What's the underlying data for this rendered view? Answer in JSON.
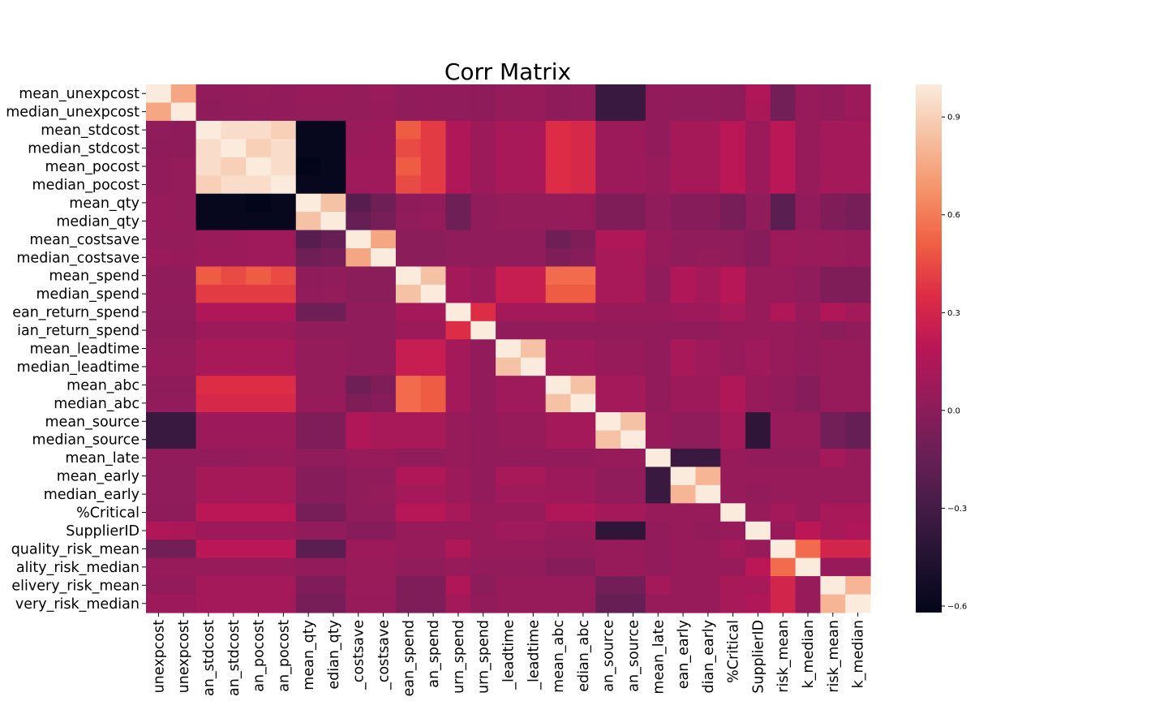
{
  "chart_data": {
    "type": "heatmap",
    "title": "Corr Matrix",
    "vmin": -0.62,
    "vmax": 1.0,
    "colorbar_ticks": [
      0.9,
      0.6,
      0.3,
      0.0,
      -0.3,
      -0.6
    ],
    "colorbar_tick_labels": [
      "0.9",
      "0.6",
      "0.3",
      "0.0",
      "−0.3",
      "−0.6"
    ],
    "y_labels": [
      "mean_unexpcost",
      "median_unexpcost",
      "mean_stdcost",
      "median_stdcost",
      "mean_pocost",
      "median_pocost",
      "mean_qty",
      "median_qty",
      "mean_costsave",
      "median_costsave",
      "mean_spend",
      "median_spend",
      "ean_return_spend",
      "ian_return_spend",
      "mean_leadtime",
      "median_leadtime",
      "mean_abc",
      "median_abc",
      "mean_source",
      "median_source",
      "mean_late",
      "mean_early",
      "median_early",
      "%Critical",
      "SupplierID",
      "quality_risk_mean",
      "ality_risk_median",
      "elivery_risk_mean",
      "very_risk_median"
    ],
    "x_labels": [
      "unexpcost",
      "unexpcost",
      "an_stdcost",
      "an_stdcost",
      "an_pocost",
      "an_pocost",
      "mean_qty",
      "edian_qty",
      "_costsave",
      "_costsave",
      "ean_spend",
      "an_spend",
      "urn_spend",
      "urn_spend",
      "_leadtime",
      "_leadtime",
      "mean_abc",
      "edian_abc",
      "an_source",
      "an_source",
      "mean_late",
      "ean_early",
      "dian_early",
      "%Critical",
      "SupplierID",
      "risk_mean",
      "k_median",
      "risk_mean",
      "k_median"
    ],
    "values": [
      [
        1.0,
        0.75,
        0.02,
        0.03,
        0.04,
        0.03,
        0.05,
        0.05,
        0.04,
        0.06,
        0.02,
        0.03,
        0.02,
        0.01,
        0.04,
        0.05,
        0.01,
        0.02,
        -0.35,
        -0.35,
        0.03,
        0.02,
        0.02,
        0.01,
        0.15,
        -0.1,
        0.05,
        0.03,
        0.07
      ],
      [
        0.75,
        1.0,
        0.01,
        0.02,
        0.03,
        0.03,
        0.04,
        0.04,
        0.04,
        0.05,
        0.02,
        0.03,
        0.02,
        0.01,
        0.04,
        0.05,
        0.01,
        0.02,
        -0.35,
        -0.35,
        0.03,
        0.02,
        0.02,
        0.01,
        0.13,
        -0.1,
        0.05,
        0.03,
        0.07
      ],
      [
        0.02,
        0.01,
        1.0,
        0.95,
        0.95,
        0.9,
        -0.6,
        -0.6,
        0.06,
        0.07,
        0.5,
        0.4,
        0.15,
        0.07,
        0.12,
        0.12,
        0.35,
        0.32,
        0.07,
        0.07,
        0.03,
        0.11,
        0.11,
        0.2,
        0.07,
        0.2,
        0.05,
        0.1,
        0.1
      ],
      [
        0.01,
        0.01,
        0.95,
        1.0,
        0.9,
        0.95,
        -0.6,
        -0.6,
        0.06,
        0.07,
        0.45,
        0.4,
        0.15,
        0.07,
        0.12,
        0.12,
        0.35,
        0.32,
        0.07,
        0.07,
        0.03,
        0.11,
        0.11,
        0.2,
        0.07,
        0.2,
        0.05,
        0.1,
        0.1
      ],
      [
        0.03,
        0.04,
        0.95,
        0.9,
        1.0,
        0.95,
        -0.62,
        -0.6,
        0.08,
        0.08,
        0.5,
        0.4,
        0.15,
        0.07,
        0.12,
        0.12,
        0.35,
        0.32,
        0.07,
        0.07,
        0.05,
        0.11,
        0.11,
        0.2,
        0.07,
        0.2,
        0.05,
        0.1,
        0.1
      ],
      [
        0.03,
        0.04,
        0.9,
        0.95,
        0.95,
        1.0,
        -0.6,
        -0.6,
        0.08,
        0.08,
        0.45,
        0.4,
        0.15,
        0.07,
        0.12,
        0.12,
        0.35,
        0.32,
        0.07,
        0.07,
        0.05,
        0.11,
        0.11,
        0.2,
        0.07,
        0.2,
        0.05,
        0.1,
        0.1
      ],
      [
        0.05,
        0.04,
        -0.6,
        -0.6,
        -0.62,
        -0.6,
        1.0,
        0.85,
        -0.22,
        -0.12,
        0.01,
        0.03,
        -0.12,
        0.02,
        0.04,
        0.04,
        0.04,
        0.05,
        -0.05,
        -0.05,
        0.02,
        -0.02,
        -0.02,
        -0.08,
        0.02,
        -0.2,
        0.03,
        -0.05,
        -0.08
      ],
      [
        0.05,
        0.04,
        -0.6,
        -0.6,
        -0.6,
        -0.6,
        0.85,
        1.0,
        -0.15,
        -0.08,
        0.02,
        0.04,
        -0.12,
        0.02,
        0.04,
        0.04,
        0.04,
        0.05,
        -0.05,
        -0.05,
        0.02,
        -0.02,
        -0.02,
        -0.08,
        0.02,
        -0.2,
        0.03,
        -0.05,
        -0.08
      ],
      [
        0.04,
        0.04,
        0.06,
        0.06,
        0.08,
        0.08,
        -0.22,
        -0.15,
        1.0,
        0.75,
        0.0,
        0.0,
        0.02,
        0.02,
        0.02,
        0.02,
        -0.12,
        -0.05,
        0.15,
        0.15,
        0.05,
        0.02,
        0.02,
        0.02,
        -0.02,
        0.07,
        0.06,
        0.06,
        0.05
      ],
      [
        0.06,
        0.05,
        0.07,
        0.07,
        0.08,
        0.08,
        -0.12,
        -0.08,
        0.75,
        1.0,
        0.0,
        0.0,
        0.02,
        0.02,
        0.02,
        0.02,
        -0.05,
        -0.02,
        0.12,
        0.12,
        0.05,
        0.02,
        0.04,
        0.02,
        -0.02,
        0.07,
        0.06,
        0.06,
        0.05
      ],
      [
        0.02,
        0.02,
        0.5,
        0.45,
        0.5,
        0.45,
        0.01,
        0.02,
        0.0,
        0.0,
        1.0,
        0.85,
        0.1,
        0.07,
        0.25,
        0.25,
        0.55,
        0.55,
        0.12,
        0.12,
        0.02,
        0.15,
        0.1,
        0.18,
        0.05,
        0.05,
        0.02,
        -0.05,
        -0.05
      ],
      [
        0.03,
        0.03,
        0.4,
        0.4,
        0.4,
        0.4,
        0.03,
        0.04,
        0.0,
        0.0,
        0.85,
        1.0,
        0.1,
        0.07,
        0.25,
        0.25,
        0.5,
        0.5,
        0.12,
        0.12,
        0.02,
        0.15,
        0.1,
        0.18,
        0.05,
        0.05,
        0.02,
        -0.05,
        -0.05
      ],
      [
        0.02,
        0.02,
        0.15,
        0.15,
        0.15,
        0.15,
        -0.12,
        -0.12,
        0.02,
        0.02,
        0.1,
        0.1,
        1.0,
        0.35,
        0.1,
        0.1,
        0.1,
        0.1,
        0.05,
        0.05,
        0.05,
        0.07,
        0.07,
        0.12,
        0.05,
        0.15,
        0.05,
        0.15,
        0.1
      ],
      [
        0.01,
        0.01,
        0.07,
        0.07,
        0.07,
        0.07,
        0.02,
        0.02,
        0.02,
        0.02,
        0.07,
        0.07,
        0.35,
        1.0,
        0.03,
        0.03,
        0.03,
        0.03,
        0.03,
        0.03,
        0.03,
        0.03,
        0.03,
        0.05,
        0.05,
        0.05,
        0.03,
        0.0,
        0.03
      ],
      [
        0.04,
        0.04,
        0.12,
        0.12,
        0.12,
        0.12,
        0.04,
        0.04,
        0.02,
        0.02,
        0.25,
        0.25,
        0.1,
        0.03,
        1.0,
        0.85,
        0.08,
        0.08,
        0.05,
        0.05,
        0.03,
        0.12,
        0.08,
        0.05,
        0.08,
        0.05,
        0.03,
        0.05,
        0.05
      ],
      [
        0.05,
        0.05,
        0.12,
        0.12,
        0.12,
        0.12,
        0.04,
        0.04,
        0.02,
        0.02,
        0.25,
        0.25,
        0.1,
        0.03,
        0.85,
        1.0,
        0.08,
        0.08,
        0.05,
        0.05,
        0.03,
        0.12,
        0.08,
        0.05,
        0.08,
        0.05,
        0.03,
        0.05,
        0.05
      ],
      [
        0.01,
        0.01,
        0.35,
        0.35,
        0.35,
        0.35,
        0.04,
        0.04,
        -0.12,
        -0.05,
        0.55,
        0.5,
        0.1,
        0.03,
        0.08,
        0.08,
        1.0,
        0.85,
        0.1,
        0.1,
        0.03,
        0.07,
        0.07,
        0.15,
        0.05,
        0.03,
        -0.02,
        0.05,
        0.05
      ],
      [
        0.02,
        0.02,
        0.32,
        0.32,
        0.32,
        0.32,
        0.05,
        0.05,
        -0.05,
        -0.02,
        0.55,
        0.5,
        0.1,
        0.03,
        0.08,
        0.08,
        0.85,
        1.0,
        0.1,
        0.1,
        0.03,
        0.07,
        0.07,
        0.15,
        0.05,
        0.03,
        -0.02,
        0.05,
        0.05
      ],
      [
        -0.35,
        -0.35,
        0.07,
        0.07,
        0.07,
        0.07,
        -0.05,
        -0.05,
        0.15,
        0.12,
        0.12,
        0.12,
        0.05,
        0.03,
        0.05,
        0.05,
        0.1,
        0.1,
        1.0,
        0.85,
        0.05,
        0.02,
        0.02,
        0.1,
        -0.4,
        0.05,
        0.05,
        -0.1,
        -0.15
      ],
      [
        -0.35,
        -0.35,
        0.07,
        0.07,
        0.07,
        0.07,
        -0.05,
        -0.05,
        0.15,
        0.12,
        0.12,
        0.12,
        0.05,
        0.03,
        0.05,
        0.05,
        0.1,
        0.1,
        0.85,
        1.0,
        0.05,
        0.02,
        0.02,
        0.1,
        -0.4,
        0.05,
        0.05,
        -0.1,
        -0.15
      ],
      [
        0.03,
        0.03,
        0.03,
        0.03,
        0.05,
        0.05,
        0.02,
        0.02,
        0.05,
        0.05,
        0.02,
        0.02,
        0.05,
        0.03,
        0.03,
        0.03,
        0.03,
        0.03,
        0.05,
        0.05,
        1.0,
        -0.35,
        -0.35,
        0.05,
        0.03,
        0.03,
        0.03,
        0.1,
        0.05
      ],
      [
        0.02,
        0.02,
        0.11,
        0.11,
        0.11,
        0.11,
        -0.02,
        -0.02,
        0.02,
        0.02,
        0.15,
        0.15,
        0.07,
        0.03,
        0.12,
        0.12,
        0.07,
        0.07,
        0.02,
        0.02,
        -0.35,
        1.0,
        0.8,
        0.05,
        0.05,
        0.05,
        0.05,
        0.05,
        0.05
      ],
      [
        0.02,
        0.02,
        0.11,
        0.11,
        0.11,
        0.11,
        -0.02,
        -0.02,
        0.02,
        0.04,
        0.1,
        0.1,
        0.07,
        0.03,
        0.08,
        0.08,
        0.07,
        0.07,
        0.02,
        0.02,
        -0.35,
        0.8,
        1.0,
        0.05,
        0.03,
        0.05,
        0.05,
        0.05,
        0.05
      ],
      [
        0.01,
        0.01,
        0.2,
        0.2,
        0.2,
        0.2,
        -0.08,
        -0.08,
        0.02,
        0.02,
        0.18,
        0.18,
        0.12,
        0.05,
        0.05,
        0.05,
        0.15,
        0.15,
        0.1,
        0.1,
        0.05,
        0.05,
        0.05,
        1.0,
        0.05,
        0.1,
        0.05,
        0.12,
        0.12
      ],
      [
        0.15,
        0.13,
        0.07,
        0.07,
        0.07,
        0.07,
        0.02,
        0.02,
        -0.02,
        -0.02,
        0.05,
        0.05,
        0.05,
        0.05,
        0.08,
        0.08,
        0.05,
        0.05,
        -0.4,
        -0.4,
        0.03,
        0.05,
        0.03,
        0.05,
        1.0,
        0.05,
        0.2,
        0.12,
        0.15
      ],
      [
        -0.1,
        -0.1,
        0.2,
        0.2,
        0.2,
        0.2,
        -0.2,
        -0.2,
        0.07,
        0.07,
        0.05,
        0.05,
        0.15,
        0.05,
        0.05,
        0.05,
        0.03,
        0.03,
        0.05,
        0.05,
        0.03,
        0.05,
        0.05,
        0.1,
        0.05,
        1.0,
        0.55,
        0.3,
        0.3
      ],
      [
        0.05,
        0.05,
        0.05,
        0.05,
        0.05,
        0.05,
        0.03,
        0.03,
        0.06,
        0.06,
        0.02,
        0.02,
        0.05,
        0.03,
        0.03,
        0.03,
        -0.02,
        -0.02,
        0.05,
        0.05,
        0.03,
        0.05,
        0.05,
        0.05,
        0.2,
        0.55,
        1.0,
        0.05,
        0.05
      ],
      [
        0.03,
        0.03,
        0.1,
        0.1,
        0.1,
        0.1,
        -0.05,
        -0.05,
        0.06,
        0.06,
        -0.05,
        -0.05,
        0.15,
        0.0,
        0.05,
        0.05,
        0.05,
        0.05,
        -0.1,
        -0.1,
        0.1,
        0.05,
        0.05,
        0.12,
        0.12,
        0.3,
        0.05,
        1.0,
        0.8
      ],
      [
        0.07,
        0.07,
        0.1,
        0.1,
        0.1,
        0.1,
        -0.08,
        -0.08,
        0.05,
        0.05,
        -0.05,
        -0.05,
        0.1,
        0.03,
        0.05,
        0.05,
        0.05,
        0.05,
        -0.15,
        -0.15,
        0.05,
        0.05,
        0.05,
        0.12,
        0.15,
        0.3,
        0.05,
        0.8,
        1.0
      ]
    ]
  }
}
